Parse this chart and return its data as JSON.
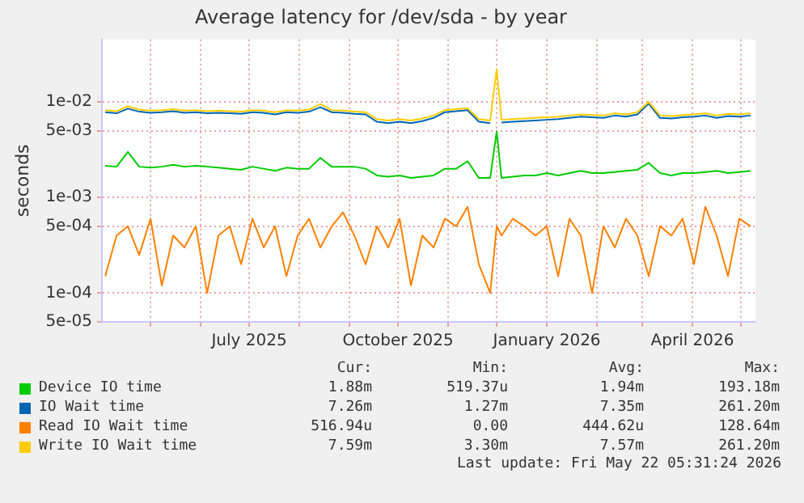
{
  "chart_data": {
    "type": "line",
    "title": "Average latency for /dev/sda - by year",
    "ylabel": "seconds",
    "log": "y",
    "grid": true,
    "legend": "bottom",
    "marker": "none",
    "line_style": "solid",
    "ylim": [
      5e-05,
      0.045
    ],
    "yticks": [
      {
        "value": 0.01,
        "label": "1e-02"
      },
      {
        "value": 0.005,
        "label": "5e-03"
      },
      {
        "value": 0.001,
        "label": "1e-03"
      },
      {
        "value": 0.0005,
        "label": "5e-04"
      },
      {
        "value": 0.0001,
        "label": "1e-04"
      },
      {
        "value": 5e-05,
        "label": "5e-05"
      }
    ],
    "xlim": [
      "2025-04-01",
      "2026-05-10"
    ],
    "xticks": [
      {
        "value": "2025-05",
        "label": null
      },
      {
        "value": "2025-06",
        "label": null
      },
      {
        "value": "2025-07",
        "label": "July 2025"
      },
      {
        "value": "2025-08",
        "label": null
      },
      {
        "value": "2025-09",
        "label": null
      },
      {
        "value": "2025-10",
        "label": "October 2025"
      },
      {
        "value": "2025-11",
        "label": null
      },
      {
        "value": "2025-12",
        "label": null
      },
      {
        "value": "2026-01",
        "label": "January 2026"
      },
      {
        "value": "2026-02",
        "label": null
      },
      {
        "value": "2026-03",
        "label": null
      },
      {
        "value": "2026-04",
        "label": "April 2026"
      },
      {
        "value": "2026-05",
        "label": null
      }
    ],
    "x": [
      "2025-04-03",
      "2025-04-10",
      "2025-04-17",
      "2025-04-24",
      "2025-05-01",
      "2025-05-08",
      "2025-05-15",
      "2025-05-22",
      "2025-05-29",
      "2025-06-05",
      "2025-06-12",
      "2025-06-19",
      "2025-06-26",
      "2025-07-03",
      "2025-07-10",
      "2025-07-17",
      "2025-07-24",
      "2025-07-31",
      "2025-08-07",
      "2025-08-14",
      "2025-08-21",
      "2025-08-28",
      "2025-09-04",
      "2025-09-11",
      "2025-09-18",
      "2025-09-25",
      "2025-10-02",
      "2025-10-09",
      "2025-10-16",
      "2025-10-23",
      "2025-10-30",
      "2025-11-06",
      "2025-11-13",
      "2025-11-20",
      "2025-11-27",
      "2025-12-01",
      "2025-12-04",
      "2025-12-11",
      "2025-12-18",
      "2025-12-25",
      "2026-01-01",
      "2026-01-08",
      "2026-01-15",
      "2026-01-22",
      "2026-01-29",
      "2026-02-05",
      "2026-02-12",
      "2026-02-19",
      "2026-02-26",
      "2026-03-05",
      "2026-03-12",
      "2026-03-19",
      "2026-03-26",
      "2026-04-02",
      "2026-04-09",
      "2026-04-16",
      "2026-04-23",
      "2026-04-30",
      "2026-05-07"
    ],
    "series": [
      {
        "name": "Device IO time",
        "color": "#00cc00",
        "values": [
          0.00215,
          0.0021,
          0.003,
          0.0021,
          0.00205,
          0.0021,
          0.0022,
          0.0021,
          0.00215,
          0.0021,
          0.00205,
          0.002,
          0.00195,
          0.0021,
          0.002,
          0.0019,
          0.00205,
          0.002,
          0.002,
          0.0026,
          0.0021,
          0.0021,
          0.0021,
          0.002,
          0.0017,
          0.00165,
          0.0017,
          0.0016,
          0.00165,
          0.0017,
          0.002,
          0.002,
          0.0024,
          0.0016,
          0.0016,
          0.0049,
          0.0016,
          0.00165,
          0.0017,
          0.0017,
          0.0018,
          0.0017,
          0.0018,
          0.0019,
          0.0018,
          0.0018,
          0.00185,
          0.0019,
          0.00195,
          0.0023,
          0.0018,
          0.0017,
          0.0018,
          0.0018,
          0.00185,
          0.0019,
          0.0018,
          0.00185,
          0.0019
        ]
      },
      {
        "name": "IO Wait time",
        "color": "#0066b3",
        "values": [
          0.0078,
          0.0076,
          0.0085,
          0.0079,
          0.0077,
          0.0078,
          0.008,
          0.0077,
          0.0078,
          0.0076,
          0.0077,
          0.0076,
          0.0075,
          0.0078,
          0.0077,
          0.0074,
          0.0078,
          0.0077,
          0.0079,
          0.0088,
          0.0078,
          0.0077,
          0.0075,
          0.0074,
          0.0062,
          0.006,
          0.0062,
          0.006,
          0.0063,
          0.0068,
          0.0078,
          0.008,
          0.0082,
          0.0062,
          0.006,
          null,
          0.0061,
          0.0062,
          0.0063,
          0.0064,
          0.0065,
          0.0066,
          0.0068,
          0.007,
          0.0069,
          0.0068,
          0.0072,
          0.007,
          0.0074,
          0.0096,
          0.0068,
          0.0067,
          0.0069,
          0.007,
          0.0072,
          0.0068,
          0.0071,
          0.007,
          0.0072
        ]
      },
      {
        "name": "Read IO Wait time",
        "color": "#ff8000",
        "values": [
          0.00015,
          0.0004,
          0.0005,
          0.00025,
          0.0006,
          0.00012,
          0.0004,
          0.0003,
          0.0005,
          0.0001,
          0.0004,
          0.0005,
          0.0002,
          0.0006,
          0.0003,
          0.0005,
          0.00015,
          0.0004,
          0.0006,
          0.0003,
          0.0005,
          0.0007,
          0.0004,
          0.0002,
          0.0005,
          0.0003,
          0.0006,
          0.00012,
          0.0004,
          0.0003,
          0.0006,
          0.0005,
          0.0008,
          0.0002,
          0.0001,
          0.0005,
          0.0004,
          0.0006,
          0.0005,
          0.0004,
          0.0005,
          0.00015,
          0.0006,
          0.0004,
          0.0001,
          0.0005,
          0.0003,
          0.0006,
          0.0004,
          0.00015,
          0.0005,
          0.0004,
          0.0006,
          0.0002,
          0.0008,
          0.0004,
          0.00015,
          0.0006,
          0.0005
        ]
      },
      {
        "name": "Write IO Wait time",
        "color": "#ffcc00",
        "values": [
          0.0082,
          0.008,
          0.009,
          0.0083,
          0.0081,
          0.0082,
          0.0084,
          0.0081,
          0.0082,
          0.008,
          0.0081,
          0.008,
          0.0079,
          0.0082,
          0.0081,
          0.0078,
          0.0082,
          0.0081,
          0.0083,
          0.0095,
          0.0082,
          0.0081,
          0.0079,
          0.0078,
          0.0066,
          0.0064,
          0.0066,
          0.0064,
          0.0067,
          0.0072,
          0.0082,
          0.0084,
          0.0086,
          0.0066,
          0.0064,
          0.022,
          0.0065,
          0.0066,
          0.0067,
          0.0068,
          0.0069,
          0.007,
          0.0072,
          0.0074,
          0.0073,
          0.0072,
          0.0076,
          0.0074,
          0.0078,
          0.01,
          0.0072,
          0.0071,
          0.0073,
          0.0074,
          0.0076,
          0.0072,
          0.0075,
          0.0074,
          0.0076
        ]
      }
    ],
    "annotations": [
      "Cur:",
      "Min:",
      "Avg:",
      "Max:",
      "1.88m",
      "519.37u",
      "1.94m",
      "193.18m",
      "7.26m",
      "1.27m",
      "7.35m",
      "261.20m",
      "516.94u",
      "0.00",
      "444.62u",
      "128.64m",
      "7.59m",
      "3.30m",
      "7.57m",
      "261.20m",
      "Last update: Fri May 22 05:31:24 2026"
    ]
  }
}
